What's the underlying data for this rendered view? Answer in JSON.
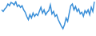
{
  "chart_data": {
    "type": "line",
    "color": "#3a8fd8",
    "grid": false,
    "tick_labels": false,
    "categories": [
      null,
      null,
      null,
      null,
      null,
      null,
      null,
      null,
      null,
      null,
      null,
      null,
      null,
      null,
      null,
      null,
      null,
      null,
      null,
      null,
      null,
      null,
      null,
      null,
      null,
      null,
      null,
      null,
      null,
      null,
      null,
      null,
      null,
      null,
      null,
      null,
      null,
      null,
      null,
      null,
      null,
      null,
      null,
      null,
      null,
      null,
      null,
      null,
      null,
      null,
      null,
      null,
      null,
      null,
      null,
      null,
      null,
      null,
      null,
      null
    ],
    "values": [
      30,
      28,
      31,
      33,
      37,
      35,
      39,
      38,
      36,
      40,
      34,
      36,
      33,
      35,
      30,
      27,
      22,
      18,
      24,
      20,
      26,
      22,
      25,
      23,
      28,
      33,
      26,
      30,
      24,
      27,
      29,
      36,
      25,
      28,
      22,
      24,
      18,
      14,
      10,
      7,
      12,
      20,
      16,
      26,
      35,
      37,
      30,
      34,
      28,
      31,
      25,
      27,
      22,
      29,
      26,
      30,
      24,
      33,
      28,
      40
    ]
  }
}
